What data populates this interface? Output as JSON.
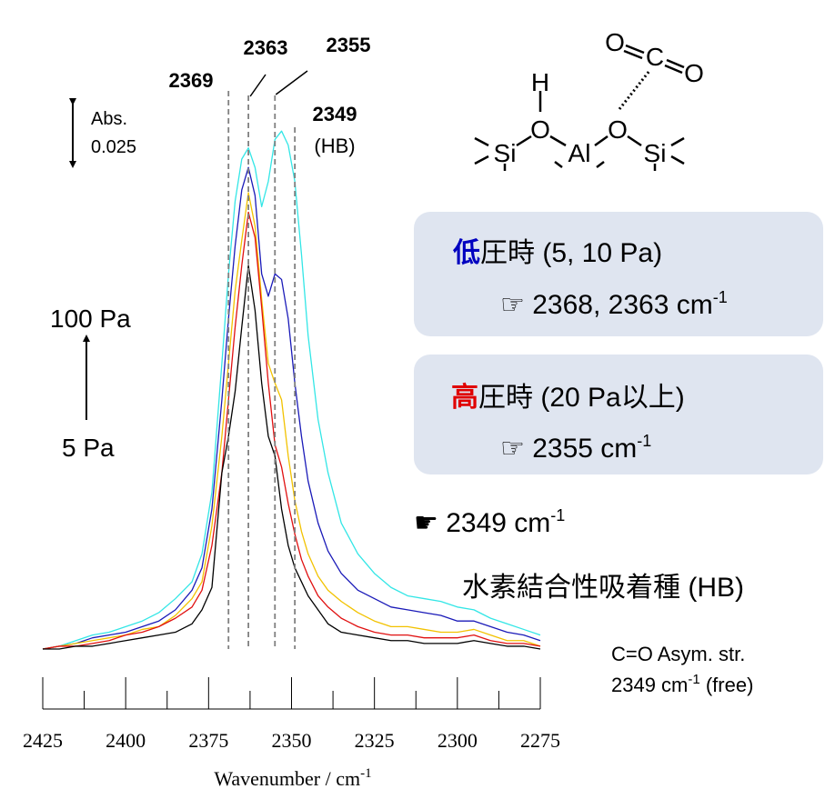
{
  "chart_data": {
    "type": "line",
    "x": [
      2425,
      2420,
      2415,
      2410,
      2405,
      2400,
      2395,
      2390,
      2385,
      2380,
      2377,
      2374,
      2371,
      2369,
      2367,
      2365,
      2363,
      2361,
      2359,
      2357,
      2355,
      2353,
      2351,
      2349,
      2347,
      2345,
      2342,
      2339,
      2335,
      2330,
      2325,
      2320,
      2315,
      2310,
      2305,
      2300,
      2295,
      2290,
      2285,
      2280,
      2275
    ],
    "series": [
      {
        "color": "#33e6e6",
        "values": [
          0.0,
          0.001,
          0.003,
          0.005,
          0.006,
          0.008,
          0.01,
          0.013,
          0.018,
          0.024,
          0.034,
          0.056,
          0.102,
          0.134,
          0.16,
          0.175,
          0.179,
          0.172,
          0.158,
          0.167,
          0.182,
          0.185,
          0.18,
          0.167,
          0.141,
          0.112,
          0.082,
          0.063,
          0.045,
          0.034,
          0.027,
          0.022,
          0.019,
          0.018,
          0.017,
          0.015,
          0.014,
          0.011,
          0.009,
          0.007,
          0.005
        ]
      },
      {
        "color": "#1a1ab8",
        "values": [
          0.0,
          0.001,
          0.002,
          0.004,
          0.005,
          0.006,
          0.008,
          0.01,
          0.014,
          0.021,
          0.029,
          0.05,
          0.089,
          0.118,
          0.144,
          0.164,
          0.172,
          0.162,
          0.134,
          0.126,
          0.134,
          0.132,
          0.118,
          0.095,
          0.076,
          0.06,
          0.045,
          0.035,
          0.027,
          0.021,
          0.018,
          0.015,
          0.014,
          0.013,
          0.012,
          0.01,
          0.01,
          0.008,
          0.006,
          0.005,
          0.003
        ]
      },
      {
        "color": "#f2c200",
        "values": [
          0.0,
          0.001,
          0.002,
          0.003,
          0.004,
          0.005,
          0.007,
          0.008,
          0.012,
          0.018,
          0.024,
          0.044,
          0.076,
          0.102,
          0.128,
          0.146,
          0.163,
          0.151,
          0.125,
          0.102,
          0.095,
          0.089,
          0.069,
          0.053,
          0.042,
          0.034,
          0.026,
          0.021,
          0.017,
          0.013,
          0.01,
          0.008,
          0.008,
          0.007,
          0.006,
          0.006,
          0.007,
          0.005,
          0.003,
          0.003,
          0.001
        ]
      },
      {
        "color": "#e01010",
        "values": [
          0.0,
          0.001,
          0.001,
          0.002,
          0.003,
          0.005,
          0.006,
          0.008,
          0.011,
          0.015,
          0.021,
          0.037,
          0.063,
          0.089,
          0.115,
          0.137,
          0.156,
          0.147,
          0.122,
          0.095,
          0.073,
          0.065,
          0.052,
          0.041,
          0.032,
          0.026,
          0.019,
          0.015,
          0.011,
          0.008,
          0.006,
          0.005,
          0.005,
          0.004,
          0.004,
          0.004,
          0.005,
          0.003,
          0.002,
          0.002,
          0.001
        ]
      },
      {
        "color": "#000000",
        "values": [
          0.0,
          0.0,
          0.001,
          0.001,
          0.002,
          0.003,
          0.004,
          0.005,
          0.006,
          0.009,
          0.014,
          0.022,
          0.063,
          0.076,
          0.092,
          0.115,
          0.137,
          0.121,
          0.095,
          0.076,
          0.069,
          0.05,
          0.037,
          0.029,
          0.024,
          0.019,
          0.014,
          0.009,
          0.006,
          0.005,
          0.004,
          0.003,
          0.003,
          0.002,
          0.002,
          0.002,
          0.003,
          0.002,
          0.001,
          0.001,
          0.0
        ]
      }
    ],
    "xlim": [
      2425,
      2275
    ],
    "xticks": [
      2425,
      2400,
      2375,
      2350,
      2325,
      2300,
      2275
    ],
    "xminorticks": [
      2412.5,
      2387.5,
      2362.5,
      2337.5,
      2312.5,
      2287.5
    ],
    "xlabel": "Wavenumber / cm",
    "xlabel_superscript": "-1",
    "ylim": [
      0,
      0.2
    ],
    "reference_lines": [
      2369,
      2363,
      2355,
      2349
    ],
    "reference_line_sublabel": "(HB)",
    "reference_line_color": "#808080",
    "scale_bar": {
      "label": "Abs.",
      "value": 0.025
    },
    "pressure_arrow": {
      "high": "100 Pa",
      "high_color": "#00b0f0",
      "low": "5 Pa"
    }
  },
  "structure": {
    "atoms": [
      "H",
      "O",
      "Si",
      "Al",
      "O",
      "Si",
      "O",
      "C",
      "O"
    ]
  },
  "notes": {
    "low_pressure": {
      "emphasis": "低",
      "emphasis_color": "#0000c0",
      "text": "圧時 (5, 10 Pa)",
      "detail": "☞ 2368, 2363 cm",
      "detail_superscript": "-1"
    },
    "high_pressure": {
      "emphasis": "高",
      "emphasis_color": "#e00000",
      "text": "圧時 (20 Pa以上)",
      "detail": "☞ 2355 cm",
      "detail_superscript": "-1"
    },
    "hb": {
      "detail": "☛ 2349 cm",
      "detail_superscript": "-1",
      "text": "水素結合性吸着種 (HB)"
    },
    "free": {
      "line1": "C=O Asym. str.",
      "line2": "2349 cm",
      "line2_superscript": "-1",
      "line2_tail": " (free)"
    }
  }
}
